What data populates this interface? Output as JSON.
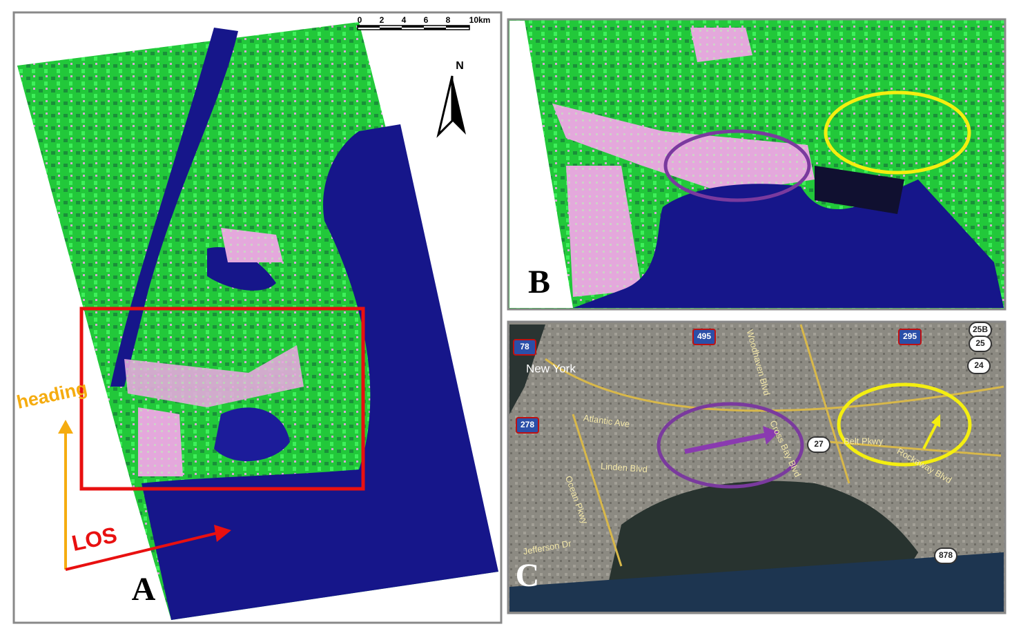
{
  "panel_a": {
    "label": "A",
    "scale_bar": [
      "0",
      "2",
      "4",
      "6",
      "8",
      "10km"
    ],
    "north": "N",
    "heading": "heading",
    "los": "LOS"
  },
  "panel_b": {
    "label": "B"
  },
  "panel_c": {
    "label": "C",
    "places": [
      "New York",
      "Atlantic Ave",
      "Linden Blvd",
      "Belt Pkwy",
      "Cross Bay Blvd",
      "Rockaway Blvd",
      "Woodhaven Blvd",
      "Ocean Pkwy",
      "Jefferson Dr"
    ],
    "shields": [
      "78",
      "495",
      "278",
      "295",
      "27",
      "878",
      "25B",
      "25",
      "24"
    ]
  }
}
